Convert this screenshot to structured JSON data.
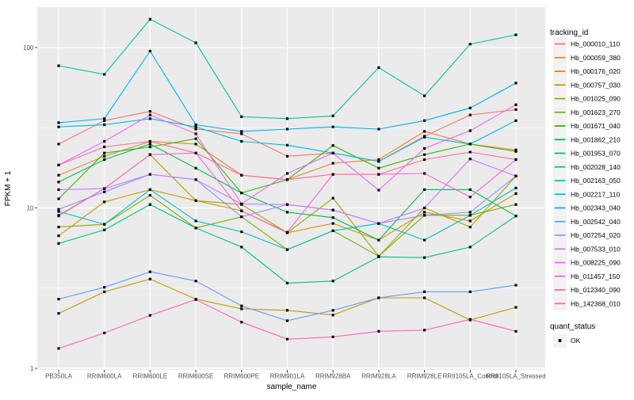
{
  "labels": {
    "x_title": "sample_name",
    "y_title": "FPKM + 1",
    "y_tick_labels": [
      "1",
      "10",
      "100"
    ]
  },
  "legend": {
    "tracking_title": "tracking_id",
    "quant_title": "quant_status",
    "quant_items": [
      {
        "label": "OK",
        "marker": "black-square"
      }
    ]
  },
  "style_colors": {
    "panel_background": "#EBEBEB",
    "grid_line": "#FFFFFF",
    "point_color": "#000000",
    "tick_text": "#4D4D4D",
    "legend_key_background": "#F2F2F2"
  },
  "chart_data": {
    "type": "line",
    "log_y": true,
    "y_axis_range": [
      1,
      180
    ],
    "y_major_ticks": [
      1,
      10,
      100
    ],
    "y_minor_gridlines": [
      3.1623,
      31.6228
    ],
    "grid": "white on gray panel (ggplot2 style)",
    "legend_position": "right",
    "point_shape": "small black square (quant_status OK)",
    "categories": [
      "PB350LA",
      "RRIM600LA",
      "RRIM600LE",
      "RRIM600SE",
      "RRIM600PE",
      "RRIM901LA",
      "RRIM928BA",
      "RRIM928LA",
      "RRIM928LE",
      "RRII105LA_Control",
      "RRII105LA_Stressed"
    ],
    "series": [
      {
        "name": "Hb_000010_110",
        "color": "#F8766D",
        "values": [
          25,
          35,
          40,
          31,
          29,
          21,
          22,
          19.5,
          28,
          38,
          41
        ]
      },
      {
        "name": "Hb_000059_380",
        "color": "#EA8331",
        "values": [
          16,
          21,
          26,
          25,
          16,
          15,
          19,
          20,
          30,
          25,
          23
        ]
      },
      {
        "name": "Hb_000176_020",
        "color": "#D89000",
        "values": [
          6.7,
          10.9,
          13,
          11.1,
          9.6,
          7.0,
          8.0,
          6.3,
          9.4,
          8.3,
          12.3
        ]
      },
      {
        "name": "Hb_000757_030",
        "color": "#C09B00",
        "values": [
          2.2,
          3.0,
          3.6,
          2.7,
          2.35,
          2.3,
          2.15,
          2.75,
          2.75,
          2.0,
          2.4
        ]
      },
      {
        "name": "Hb_001025_090",
        "color": "#A3A500",
        "values": [
          9.0,
          13.2,
          21.5,
          11.1,
          10.5,
          7.0,
          11.5,
          5.0,
          10.0,
          7.6,
          15.8
        ]
      },
      {
        "name": "Hb_001623_270",
        "color": "#7CAE00",
        "values": [
          7.6,
          7.9,
          12.0,
          7.5,
          8.8,
          5.5,
          7.2,
          5.0,
          9.0,
          9.0,
          10.5
        ]
      },
      {
        "name": "Hb_001671_040",
        "color": "#39B600",
        "values": [
          11.4,
          22,
          24,
          27,
          12.4,
          15,
          24.5,
          17.7,
          21.5,
          25,
          22.5
        ]
      },
      {
        "name": "Hb_001862_210",
        "color": "#00BB4E",
        "values": [
          14.5,
          20,
          25,
          17.7,
          12.4,
          9.4,
          8.7,
          6.3,
          13,
          13,
          8.9
        ]
      },
      {
        "name": "Hb_001953_070",
        "color": "#00BF7D",
        "values": [
          6.0,
          7.3,
          10.5,
          7.5,
          5.7,
          3.4,
          3.5,
          4.95,
          4.9,
          5.7,
          8.9
        ]
      },
      {
        "name": "Hb_002028_140",
        "color": "#00C1A3",
        "values": [
          77,
          68,
          150,
          107,
          37,
          36,
          37.5,
          75,
          50,
          105,
          120
        ]
      },
      {
        "name": "Hb_002163_050",
        "color": "#00BFC4",
        "values": [
          9.5,
          7.9,
          13,
          8.3,
          7.1,
          5.5,
          7.2,
          8.0,
          6.3,
          9.0,
          13.3
        ]
      },
      {
        "name": "Hb_002217_110",
        "color": "#00BAE0",
        "values": [
          32,
          33,
          36,
          32,
          26,
          24.6,
          22,
          19.5,
          27.6,
          25,
          35
        ]
      },
      {
        "name": "Hb_002343_040",
        "color": "#00B0F6",
        "values": [
          34,
          36,
          95,
          33,
          30,
          31,
          32,
          31,
          35,
          42,
          60
        ]
      },
      {
        "name": "Hb_002542_040",
        "color": "#619CFF",
        "values": [
          2.7,
          3.2,
          4.0,
          3.5,
          2.45,
          1.98,
          2.3,
          2.75,
          3.0,
          3.0,
          3.3
        ]
      },
      {
        "name": "Hb_007254_020",
        "color": "#9590FF",
        "values": [
          9.8,
          12.6,
          16.2,
          15,
          8.8,
          10.5,
          9.7,
          8.0,
          9.0,
          9.4,
          15.8
        ]
      },
      {
        "name": "Hb_007533_010",
        "color": "#C77CFF",
        "values": [
          13,
          13.2,
          16.2,
          15,
          10.6,
          10.5,
          9.7,
          8.0,
          10,
          20.2,
          15.8
        ]
      },
      {
        "name": "Hb_008225_090",
        "color": "#E76BF3",
        "values": [
          18.5,
          26,
          38,
          29,
          10.6,
          16.4,
          22,
          12.9,
          23.5,
          30.3,
          44
        ]
      },
      {
        "name": "Hb_011457_150",
        "color": "#FA62DB",
        "values": [
          8.9,
          13.2,
          21.5,
          22,
          9.6,
          7.05,
          16.2,
          16.2,
          16.4,
          11.7,
          20
        ]
      },
      {
        "name": "Hb_012340_090",
        "color": "#FF62BC",
        "values": [
          1.33,
          1.66,
          2.14,
          2.68,
          1.94,
          1.52,
          1.57,
          1.7,
          1.73,
          2.02,
          1.7
        ]
      },
      {
        "name": "Hb_142368_010",
        "color": "#FF6A98",
        "values": [
          18.5,
          24,
          26,
          22,
          16,
          15,
          16.2,
          16.2,
          20,
          22.3,
          20
        ]
      }
    ]
  }
}
